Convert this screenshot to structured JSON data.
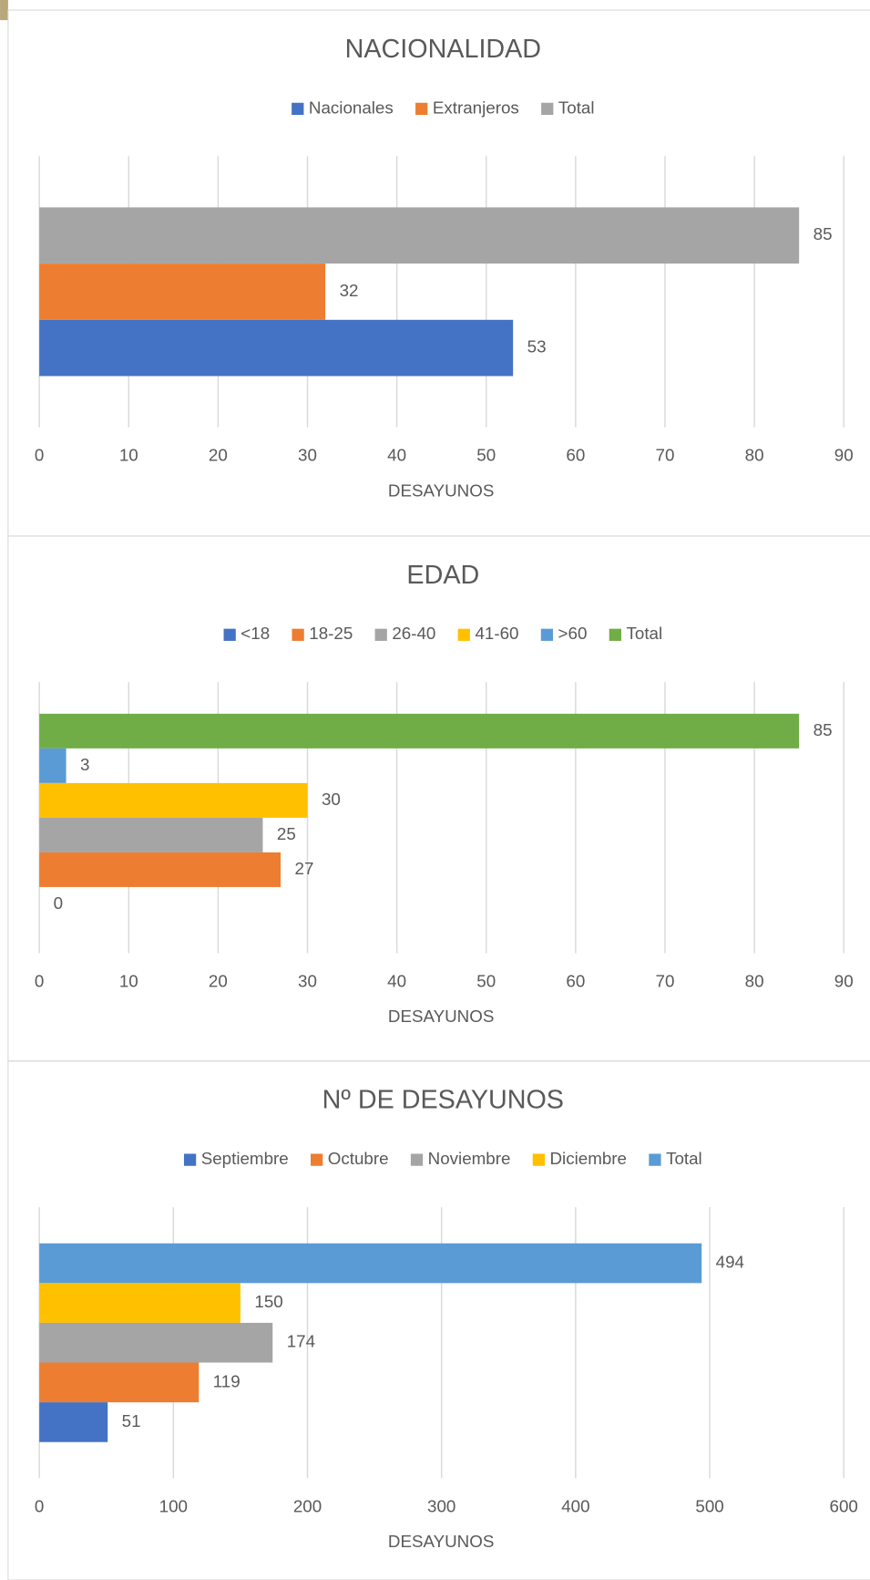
{
  "chart_data": [
    {
      "type": "bar",
      "orientation": "horizontal",
      "title": "NACIONALIDAD",
      "x_label": "DESAYUNOS",
      "legend": "top",
      "grid": true,
      "series": [
        {
          "name": "Total",
          "color": "#a5a5a5",
          "values": [
            85
          ]
        },
        {
          "name": "Extranjeros",
          "color": "#ed7d31",
          "values": [
            32
          ]
        },
        {
          "name": "Nacionales",
          "color": "#4472c4",
          "values": [
            53
          ]
        }
      ],
      "xlim": [
        0,
        90
      ],
      "xticks": [
        0,
        10,
        20,
        30,
        40,
        50,
        60,
        70,
        80,
        90
      ]
    },
    {
      "type": "bar",
      "orientation": "horizontal",
      "title": "EDAD",
      "x_label": "DESAYUNOS",
      "legend": "top",
      "grid": true,
      "series": [
        {
          "name": "Total",
          "color": "#70ad47",
          "values": [
            85
          ]
        },
        {
          "name": ">60",
          "color": "#5b9bd5",
          "values": [
            3
          ]
        },
        {
          "name": "41-60",
          "color": "#ffc000",
          "values": [
            30
          ]
        },
        {
          "name": "26-40",
          "color": "#a5a5a5",
          "values": [
            25
          ]
        },
        {
          "name": "18-25",
          "color": "#ed7d31",
          "values": [
            27
          ]
        },
        {
          "name": "<18",
          "color": "#4472c4",
          "values": [
            0
          ]
        }
      ],
      "xlim": [
        0,
        90
      ],
      "xticks": [
        0,
        10,
        20,
        30,
        40,
        50,
        60,
        70,
        80,
        90
      ]
    },
    {
      "type": "bar",
      "orientation": "horizontal",
      "title": "Nº DE DESAYUNOS",
      "x_label": "DESAYUNOS",
      "legend": "top",
      "grid": true,
      "series": [
        {
          "name": "Total",
          "color": "#5b9bd5",
          "values": [
            494
          ]
        },
        {
          "name": "Diciembre",
          "color": "#ffc000",
          "values": [
            150
          ]
        },
        {
          "name": "Noviembre",
          "color": "#a5a5a5",
          "values": [
            174
          ]
        },
        {
          "name": "Octubre",
          "color": "#ed7d31",
          "values": [
            119
          ]
        },
        {
          "name": "Septiembre",
          "color": "#4472c4",
          "values": [
            51
          ]
        }
      ],
      "xlim": [
        0,
        600
      ],
      "xticks": [
        0,
        100,
        200,
        300,
        400,
        500,
        600
      ]
    }
  ]
}
